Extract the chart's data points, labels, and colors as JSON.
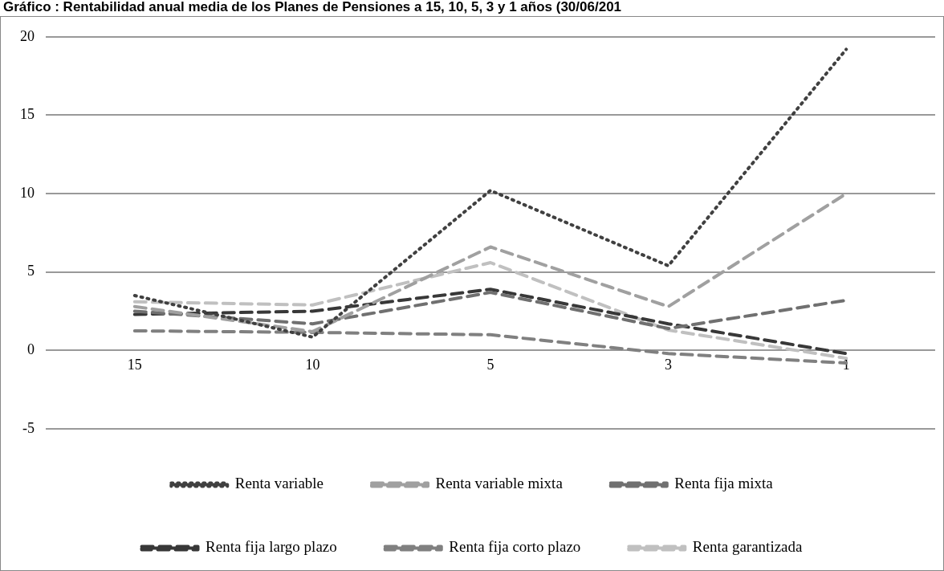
{
  "chart_data": {
    "type": "line",
    "title": "Gráfico : Rentabilidad anual media de los Planes de Pensiones a 15, 10, 5, 3 y 1 años (30/06/201",
    "categories": [
      "15",
      "10",
      "5",
      "3",
      "1"
    ],
    "series": [
      {
        "name": "Renta variable",
        "color": "#404040",
        "line_style": "dotted",
        "values": [
          3.5,
          0.85,
          10.2,
          5.4,
          19.2
        ]
      },
      {
        "name": "Renta variable mixta",
        "color": "#a0a0a0",
        "line_style": "dashed",
        "values": [
          2.8,
          1.2,
          6.6,
          2.8,
          10.0
        ]
      },
      {
        "name": "Renta fija mixta",
        "color": "#707070",
        "line_style": "dashed",
        "values": [
          2.5,
          1.7,
          3.7,
          1.4,
          3.2
        ]
      },
      {
        "name": "Renta fija largo plazo",
        "color": "#383838",
        "line_style": "dashed",
        "values": [
          2.3,
          2.5,
          3.9,
          1.7,
          -0.2
        ]
      },
      {
        "name": "Renta fija corto plazo",
        "color": "#808080",
        "line_style": "dashed",
        "values": [
          1.25,
          1.15,
          1.0,
          -0.2,
          -0.8
        ]
      },
      {
        "name": "Renta garantizada",
        "color": "#c0c0c0",
        "line_style": "dashed",
        "values": [
          3.1,
          2.9,
          5.6,
          1.3,
          -0.5
        ]
      }
    ],
    "ylim": [
      -5,
      20
    ],
    "yticks": [
      -5,
      0,
      5,
      10,
      15,
      20
    ],
    "grid": "y",
    "legend": "bottom",
    "marker": "none"
  }
}
